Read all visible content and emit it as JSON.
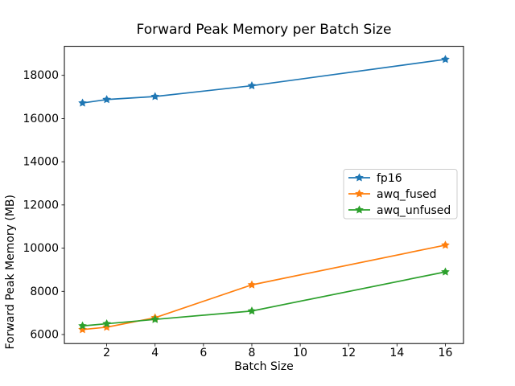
{
  "chart_data": {
    "type": "line",
    "title": "Forward Peak Memory per Batch Size",
    "xlabel": "Batch Size",
    "ylabel": "Forward Peak Memory (MB)",
    "x": [
      1,
      2,
      4,
      8,
      16
    ],
    "series": [
      {
        "name": "fp16",
        "color": "#1f77b4",
        "marker": "star",
        "values": [
          16720,
          16880,
          17020,
          17520,
          18740
        ]
      },
      {
        "name": "awq_fused",
        "color": "#ff7f0e",
        "marker": "star",
        "values": [
          6230,
          6340,
          6780,
          8300,
          10140
        ]
      },
      {
        "name": "awq_unfused",
        "color": "#2ca02c",
        "marker": "star",
        "values": [
          6400,
          6500,
          6700,
          7090,
          8900
        ]
      }
    ],
    "x_ticks": [
      2,
      4,
      6,
      8,
      10,
      12,
      14,
      16
    ],
    "y_ticks": [
      6000,
      8000,
      10000,
      12000,
      14000,
      16000,
      18000
    ],
    "xlim": [
      0.25,
      16.75
    ],
    "ylim": [
      5583,
      19344
    ],
    "grid": false,
    "legend_position": "center right",
    "legend_labels": [
      "fp16",
      "awq_fused",
      "awq_unfused"
    ],
    "axis_color": "#000000",
    "background_color": "#ffffff",
    "legend_border_color": "#cccccc"
  }
}
